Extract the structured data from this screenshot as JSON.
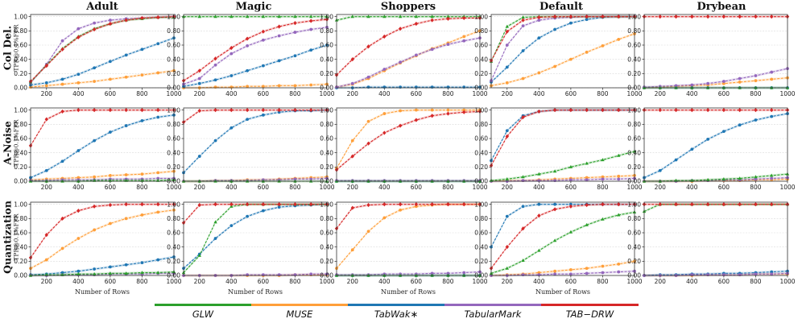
{
  "chart_data": {
    "type": "line",
    "x_axis_label": "Number of Rows",
    "y_axis_label": "TPR@0.1%FPR",
    "x_ticks": [
      200,
      400,
      600,
      800,
      1000
    ],
    "y_ticks": [
      "0.00",
      "0.20",
      "0.40",
      "0.60",
      "0.80",
      "1.00"
    ],
    "xlim": [
      100,
      1000
    ],
    "ylim": [
      0,
      1.03
    ],
    "x": [
      100,
      200,
      300,
      400,
      500,
      600,
      700,
      800,
      900,
      1000
    ],
    "columns": [
      "Adult",
      "Magic",
      "Shoppers",
      "Default",
      "Drybean"
    ],
    "rows": [
      {
        "main": "Col Del.",
        "sub": "TPR@0.1%FPR"
      },
      {
        "main": "A-Noise",
        "sub": "TPR@0.1%FPR"
      },
      {
        "main": "Quantization",
        "sub": "TPR@0.1%FPR"
      }
    ],
    "methods": [
      {
        "name": "GLW",
        "label": "GLW",
        "color": "#2ca02c",
        "marker": "triangle"
      },
      {
        "name": "MUSE",
        "label": "MUSE",
        "color": "#ff9f3a",
        "marker": "circle"
      },
      {
        "name": "TabWak",
        "label": "TabWak∗",
        "color": "#1f77b4",
        "marker": "circle"
      },
      {
        "name": "TabularMark",
        "label": "TabularMark",
        "color": "#9467bd",
        "marker": "circle"
      },
      {
        "name": "TAB-DRW",
        "label": "TAB−DRW",
        "color": "#d62728",
        "marker": "diamond"
      }
    ],
    "panels": [
      {
        "row": 0,
        "col": 0,
        "series": {
          "GLW": [
            0.08,
            0.32,
            0.55,
            0.72,
            0.83,
            0.9,
            0.95,
            0.97,
            0.99,
            0.99
          ],
          "MUSE": [
            0.01,
            0.03,
            0.05,
            0.07,
            0.09,
            0.12,
            0.15,
            0.18,
            0.21,
            0.24
          ],
          "TabWak": [
            0.04,
            0.07,
            0.12,
            0.19,
            0.28,
            0.37,
            0.46,
            0.54,
            0.62,
            0.7
          ],
          "TabularMark": [
            0.07,
            0.33,
            0.66,
            0.83,
            0.91,
            0.95,
            0.97,
            0.98,
            0.99,
            1.0
          ],
          "TAB-DRW": [
            0.09,
            0.31,
            0.54,
            0.71,
            0.82,
            0.9,
            0.95,
            0.98,
            0.99,
            1.0
          ]
        }
      },
      {
        "row": 0,
        "col": 1,
        "series": {
          "GLW": [
            1.0,
            1.0,
            1.0,
            1.0,
            1.0,
            1.0,
            1.0,
            1.0,
            1.0,
            1.0
          ],
          "MUSE": [
            0.0,
            0.0,
            0.01,
            0.01,
            0.02,
            0.02,
            0.03,
            0.03,
            0.04,
            0.05
          ],
          "TabWak": [
            0.02,
            0.06,
            0.11,
            0.17,
            0.24,
            0.31,
            0.38,
            0.45,
            0.53,
            0.6
          ],
          "TabularMark": [
            0.05,
            0.13,
            0.32,
            0.48,
            0.59,
            0.67,
            0.73,
            0.78,
            0.82,
            0.85
          ],
          "TAB-DRW": [
            0.1,
            0.24,
            0.41,
            0.56,
            0.69,
            0.79,
            0.86,
            0.91,
            0.94,
            0.96
          ]
        }
      },
      {
        "row": 0,
        "col": 2,
        "series": {
          "GLW": [
            0.95,
            1.0,
            1.0,
            1.0,
            1.0,
            1.0,
            1.0,
            1.0,
            1.0,
            1.0
          ],
          "MUSE": [
            0.01,
            0.05,
            0.13,
            0.24,
            0.35,
            0.45,
            0.55,
            0.63,
            0.72,
            0.8
          ],
          "TabWak": [
            0.0,
            0.0,
            0.01,
            0.01,
            0.01,
            0.01,
            0.01,
            0.01,
            0.01,
            0.01
          ],
          "TabularMark": [
            0.01,
            0.06,
            0.15,
            0.26,
            0.36,
            0.46,
            0.54,
            0.61,
            0.66,
            0.7
          ],
          "TAB-DRW": [
            0.18,
            0.4,
            0.58,
            0.72,
            0.83,
            0.9,
            0.95,
            0.97,
            0.98,
            0.98
          ]
        }
      },
      {
        "row": 0,
        "col": 3,
        "series": {
          "GLW": [
            0.37,
            0.86,
            0.99,
            1.0,
            1.0,
            1.0,
            1.0,
            1.0,
            1.0,
            1.0
          ],
          "MUSE": [
            0.03,
            0.07,
            0.13,
            0.21,
            0.3,
            0.4,
            0.5,
            0.59,
            0.68,
            0.76
          ],
          "TabWak": [
            0.08,
            0.29,
            0.52,
            0.7,
            0.82,
            0.91,
            0.96,
            0.99,
            1.0,
            1.0
          ],
          "TabularMark": [
            0.1,
            0.6,
            0.87,
            0.95,
            0.98,
            0.99,
            1.0,
            1.0,
            1.0,
            1.0
          ],
          "TAB-DRW": [
            0.38,
            0.79,
            0.95,
            0.99,
            1.0,
            1.0,
            1.0,
            1.0,
            1.0,
            1.0
          ]
        }
      },
      {
        "row": 0,
        "col": 4,
        "series": {
          "GLW": [
            0.0,
            0.0,
            0.0,
            0.0,
            0.0,
            0.0,
            0.0,
            0.0,
            0.0,
            0.0
          ],
          "MUSE": [
            0.0,
            0.01,
            0.02,
            0.03,
            0.04,
            0.06,
            0.08,
            0.1,
            0.12,
            0.14
          ],
          "TabWak": [
            0.0,
            0.0,
            0.0,
            0.0,
            0.0,
            0.0,
            0.0,
            0.0,
            0.0,
            0.0
          ],
          "TabularMark": [
            0.01,
            0.02,
            0.03,
            0.04,
            0.06,
            0.09,
            0.13,
            0.17,
            0.22,
            0.27
          ],
          "TAB-DRW": [
            1.0,
            1.0,
            1.0,
            1.0,
            1.0,
            1.0,
            1.0,
            1.0,
            1.0,
            1.0
          ]
        }
      },
      {
        "row": 1,
        "col": 0,
        "series": {
          "GLW": [
            0.0,
            0.0,
            0.0,
            0.0,
            0.01,
            0.01,
            0.01,
            0.01,
            0.01,
            0.02
          ],
          "MUSE": [
            0.02,
            0.03,
            0.04,
            0.05,
            0.06,
            0.08,
            0.09,
            0.1,
            0.12,
            0.14
          ],
          "TabWak": [
            0.05,
            0.15,
            0.28,
            0.43,
            0.57,
            0.69,
            0.78,
            0.85,
            0.9,
            0.93
          ],
          "TabularMark": [
            0.01,
            0.01,
            0.02,
            0.02,
            0.02,
            0.03,
            0.03,
            0.03,
            0.04,
            0.04
          ],
          "TAB-DRW": [
            0.5,
            0.87,
            0.98,
            1.0,
            1.0,
            1.0,
            1.0,
            1.0,
            1.0,
            1.0
          ]
        }
      },
      {
        "row": 1,
        "col": 1,
        "series": {
          "GLW": [
            0.0,
            0.0,
            0.0,
            0.0,
            0.0,
            0.0,
            0.0,
            0.0,
            0.0,
            0.0
          ],
          "MUSE": [
            0.0,
            0.0,
            0.01,
            0.01,
            0.02,
            0.02,
            0.03,
            0.04,
            0.05,
            0.06
          ],
          "TabWak": [
            0.12,
            0.35,
            0.57,
            0.75,
            0.87,
            0.93,
            0.97,
            0.99,
            0.99,
            1.0
          ],
          "TabularMark": [
            0.0,
            0.0,
            0.01,
            0.01,
            0.01,
            0.02,
            0.02,
            0.03,
            0.03,
            0.04
          ],
          "TAB-DRW": [
            0.83,
            0.99,
            1.0,
            1.0,
            1.0,
            1.0,
            1.0,
            1.0,
            1.0,
            1.0
          ]
        }
      },
      {
        "row": 1,
        "col": 2,
        "series": {
          "GLW": [
            0.0,
            0.0,
            0.0,
            0.0,
            0.0,
            0.0,
            0.0,
            0.0,
            0.0,
            0.0
          ],
          "MUSE": [
            0.18,
            0.57,
            0.84,
            0.95,
            0.99,
            1.0,
            1.0,
            1.0,
            1.0,
            1.0
          ],
          "TabWak": [
            0.0,
            0.0,
            0.0,
            0.0,
            0.0,
            0.0,
            0.0,
            0.0,
            0.0,
            0.0
          ],
          "TabularMark": [
            0.01,
            0.01,
            0.01,
            0.01,
            0.01,
            0.01,
            0.01,
            0.01,
            0.01,
            0.01
          ],
          "TAB-DRW": [
            0.16,
            0.35,
            0.53,
            0.68,
            0.78,
            0.86,
            0.92,
            0.95,
            0.97,
            0.98
          ]
        }
      },
      {
        "row": 1,
        "col": 3,
        "series": {
          "GLW": [
            0.01,
            0.03,
            0.06,
            0.1,
            0.14,
            0.2,
            0.25,
            0.3,
            0.36,
            0.42
          ],
          "MUSE": [
            0.0,
            0.01,
            0.01,
            0.02,
            0.03,
            0.04,
            0.05,
            0.06,
            0.07,
            0.08
          ],
          "TabWak": [
            0.29,
            0.71,
            0.92,
            0.98,
            1.0,
            1.0,
            1.0,
            1.0,
            1.0,
            1.0
          ],
          "TabularMark": [
            0.0,
            0.0,
            0.01,
            0.01,
            0.01,
            0.02,
            0.02,
            0.03,
            0.03,
            0.04
          ],
          "TAB-DRW": [
            0.22,
            0.63,
            0.9,
            0.98,
            1.0,
            1.0,
            1.0,
            1.0,
            1.0,
            1.0
          ]
        }
      },
      {
        "row": 1,
        "col": 4,
        "series": {
          "GLW": [
            0.0,
            0.0,
            0.01,
            0.01,
            0.02,
            0.03,
            0.04,
            0.06,
            0.08,
            0.1
          ],
          "MUSE": [
            0.0,
            0.0,
            0.0,
            0.0,
            0.01,
            0.01,
            0.01,
            0.02,
            0.02,
            0.03
          ],
          "TabWak": [
            0.05,
            0.15,
            0.3,
            0.45,
            0.59,
            0.7,
            0.79,
            0.86,
            0.91,
            0.95
          ],
          "TabularMark": [
            0.0,
            0.0,
            0.0,
            0.01,
            0.01,
            0.02,
            0.02,
            0.03,
            0.04,
            0.05
          ],
          "TAB-DRW": [
            1.0,
            1.0,
            1.0,
            1.0,
            1.0,
            1.0,
            1.0,
            1.0,
            1.0,
            1.0
          ]
        }
      },
      {
        "row": 2,
        "col": 0,
        "series": {
          "GLW": [
            0.0,
            0.01,
            0.01,
            0.02,
            0.02,
            0.03,
            0.03,
            0.04,
            0.04,
            0.05
          ],
          "MUSE": [
            0.1,
            0.22,
            0.38,
            0.52,
            0.64,
            0.73,
            0.8,
            0.85,
            0.89,
            0.92
          ],
          "TabWak": [
            0.01,
            0.02,
            0.04,
            0.06,
            0.09,
            0.12,
            0.15,
            0.18,
            0.22,
            0.26
          ],
          "TabularMark": [
            0.0,
            0.0,
            0.01,
            0.01,
            0.01,
            0.02,
            0.02,
            0.02,
            0.03,
            0.03
          ],
          "TAB-DRW": [
            0.25,
            0.57,
            0.8,
            0.91,
            0.97,
            0.99,
            1.0,
            1.0,
            1.0,
            1.0
          ]
        }
      },
      {
        "row": 2,
        "col": 1,
        "series": {
          "GLW": [
            0.04,
            0.28,
            0.75,
            0.97,
            1.0,
            1.0,
            1.0,
            1.0,
            1.0,
            1.0
          ],
          "MUSE": [
            0.0,
            0.0,
            0.0,
            0.0,
            0.0,
            0.0,
            0.0,
            0.01,
            0.01,
            0.01
          ],
          "TabWak": [
            0.1,
            0.3,
            0.52,
            0.7,
            0.83,
            0.91,
            0.96,
            0.98,
            0.99,
            1.0
          ],
          "TabularMark": [
            0.0,
            0.0,
            0.0,
            0.0,
            0.01,
            0.01,
            0.01,
            0.01,
            0.02,
            0.02
          ],
          "TAB-DRW": [
            0.74,
            0.99,
            1.0,
            1.0,
            1.0,
            1.0,
            1.0,
            1.0,
            1.0,
            1.0
          ]
        }
      },
      {
        "row": 2,
        "col": 2,
        "series": {
          "GLW": [
            0.0,
            0.0,
            0.0,
            0.0,
            0.0,
            0.0,
            0.0,
            0.0,
            0.0,
            0.0
          ],
          "MUSE": [
            0.1,
            0.36,
            0.62,
            0.81,
            0.92,
            0.97,
            0.99,
            1.0,
            1.0,
            1.0
          ],
          "TabWak": [
            0.0,
            0.0,
            0.0,
            0.0,
            0.0,
            0.0,
            0.0,
            0.0,
            0.0,
            0.0
          ],
          "TabularMark": [
            0.01,
            0.01,
            0.01,
            0.02,
            0.02,
            0.02,
            0.03,
            0.03,
            0.04,
            0.05
          ],
          "TAB-DRW": [
            0.66,
            0.95,
            0.99,
            1.0,
            1.0,
            1.0,
            1.0,
            1.0,
            1.0,
            1.0
          ]
        }
      },
      {
        "row": 2,
        "col": 3,
        "series": {
          "GLW": [
            0.03,
            0.1,
            0.21,
            0.35,
            0.49,
            0.61,
            0.71,
            0.79,
            0.85,
            0.89
          ],
          "MUSE": [
            0.0,
            0.01,
            0.02,
            0.04,
            0.06,
            0.08,
            0.1,
            0.13,
            0.16,
            0.2
          ],
          "TabWak": [
            0.4,
            0.83,
            0.97,
            1.0,
            1.0,
            1.0,
            1.0,
            1.0,
            1.0,
            1.0
          ],
          "TabularMark": [
            0.0,
            0.0,
            0.01,
            0.01,
            0.02,
            0.02,
            0.03,
            0.04,
            0.05,
            0.06
          ],
          "TAB-DRW": [
            0.1,
            0.4,
            0.66,
            0.84,
            0.93,
            0.97,
            0.99,
            1.0,
            1.0,
            1.0
          ]
        }
      },
      {
        "row": 2,
        "col": 4,
        "series": {
          "GLW": [
            0.9,
            1.0,
            1.0,
            1.0,
            1.0,
            1.0,
            1.0,
            1.0,
            1.0,
            1.0
          ],
          "MUSE": [
            0.0,
            0.0,
            0.0,
            0.0,
            0.01,
            0.01,
            0.01,
            0.02,
            0.02,
            0.02
          ],
          "TabWak": [
            0.0,
            0.01,
            0.01,
            0.02,
            0.02,
            0.03,
            0.03,
            0.04,
            0.05,
            0.06
          ],
          "TabularMark": [
            0.0,
            0.0,
            0.0,
            0.01,
            0.01,
            0.01,
            0.01,
            0.02,
            0.02,
            0.03
          ],
          "TAB-DRW": [
            1.0,
            1.0,
            1.0,
            1.0,
            1.0,
            1.0,
            1.0,
            1.0,
            1.0,
            1.0
          ]
        }
      }
    ]
  }
}
